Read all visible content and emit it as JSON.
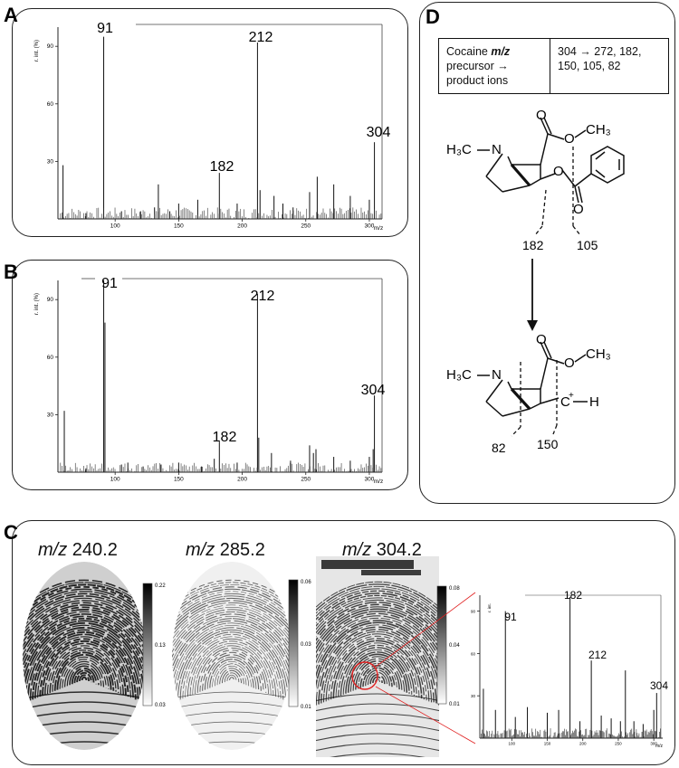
{
  "panels": {
    "a": {
      "label": "A"
    },
    "b": {
      "label": "B"
    },
    "c": {
      "label": "C"
    },
    "d": {
      "label": "D"
    }
  },
  "spectrum_a": {
    "ylabel": "r. int. (%)",
    "xlabel": "m/z",
    "y_ticks": [
      "30",
      "60",
      "90"
    ],
    "x_ticks": [
      "100",
      "150",
      "200",
      "250",
      "300"
    ],
    "peak_labels": [
      "91",
      "182",
      "212",
      "304"
    ]
  },
  "spectrum_b": {
    "ylabel": "r. int. (%)",
    "xlabel": "m/z",
    "y_ticks": [
      "30",
      "60",
      "90"
    ],
    "x_ticks": [
      "100",
      "150",
      "200",
      "250",
      "300"
    ],
    "peak_labels": [
      "91",
      "182",
      "212",
      "304"
    ]
  },
  "imaging": {
    "titles": [
      {
        "mz": "m/z",
        "value": " 240.2"
      },
      {
        "mz": "m/z",
        "value": " 285.2"
      },
      {
        "mz": "m/z",
        "value": " 304.2"
      }
    ],
    "scalebars": [
      {
        "max": "0.22",
        "mid": "0.13",
        "min": "0.03"
      },
      {
        "max": "0.06",
        "mid": "0.03",
        "min": "0.01"
      },
      {
        "max": "0.08",
        "mid": "0.04",
        "min": "0.01"
      }
    ],
    "inset": {
      "peak_labels": [
        "91",
        "182",
        "212",
        "304"
      ],
      "x_ticks": [
        "100",
        "150",
        "200",
        "250",
        "300"
      ],
      "y_ticks": [
        "30",
        "60",
        "90"
      ],
      "ylabel": "r. int.",
      "xlabel": "m/z"
    }
  },
  "mechanism": {
    "table": {
      "left_line1_plain": "Cocaine ",
      "left_line1_italic": "m/z",
      "left_line2": "precursor →",
      "left_line3": "product ions",
      "right_line1": "304 → 272, 182,",
      "right_line2": "150, 105, 82"
    },
    "labels": {
      "h3c_n": "H₃C",
      "n": "N",
      "o_top": "O",
      "o_ester": "O",
      "ch3": "CH₃",
      "o_benzoyl": "O",
      "o_carbonyl": "O",
      "frag_182": "182",
      "frag_105": "105",
      "h3c_n2": "H₃C",
      "n2": "N",
      "o_top2": "O",
      "o_ester2": "O",
      "ch3_2": "CH₃",
      "c_plus": "C",
      "plus": "+",
      "h": "H",
      "frag_82": "82",
      "frag_150": "150"
    }
  },
  "chart_data": [
    {
      "type": "bar",
      "title": "",
      "xlabel": "m/z",
      "ylabel": "r. int. (%)",
      "xlim": [
        55,
        310
      ],
      "ylim": [
        0,
        100
      ],
      "x": [
        59,
        77,
        91,
        105,
        120,
        131,
        134,
        143,
        150,
        165,
        182,
        196,
        212,
        214,
        225,
        232,
        240,
        253,
        259,
        272,
        285,
        300,
        304
      ],
      "values": [
        28,
        3,
        95,
        4,
        4,
        6,
        18,
        4,
        8,
        10,
        24,
        8,
        92,
        15,
        12,
        8,
        6,
        14,
        22,
        18,
        12,
        10,
        40
      ]
    },
    {
      "type": "bar",
      "title": "",
      "xlabel": "m/z",
      "ylabel": "r. int. (%)",
      "xlim": [
        55,
        310
      ],
      "ylim": [
        0,
        100
      ],
      "x": [
        60,
        77,
        91,
        92,
        105,
        110,
        122,
        136,
        150,
        168,
        178,
        182,
        196,
        212,
        213,
        223,
        238,
        253,
        256,
        258,
        272,
        285,
        300,
        303,
        304
      ],
      "values": [
        32,
        2,
        100,
        78,
        4,
        5,
        3,
        4,
        5,
        3,
        7,
        16,
        5,
        93,
        18,
        10,
        6,
        14,
        10,
        12,
        8,
        6,
        8,
        12,
        40
      ]
    },
    {
      "type": "bar",
      "title": "",
      "xlabel": "m/z",
      "ylabel": "r. int.",
      "xlim": [
        55,
        310
      ],
      "ylim": [
        0,
        100
      ],
      "x": [
        60,
        77,
        91,
        105,
        122,
        150,
        166,
        182,
        196,
        212,
        226,
        240,
        253,
        260,
        272,
        285,
        300,
        304
      ],
      "values": [
        35,
        20,
        90,
        15,
        22,
        18,
        20,
        100,
        12,
        55,
        16,
        14,
        12,
        48,
        12,
        10,
        20,
        32
      ]
    }
  ]
}
